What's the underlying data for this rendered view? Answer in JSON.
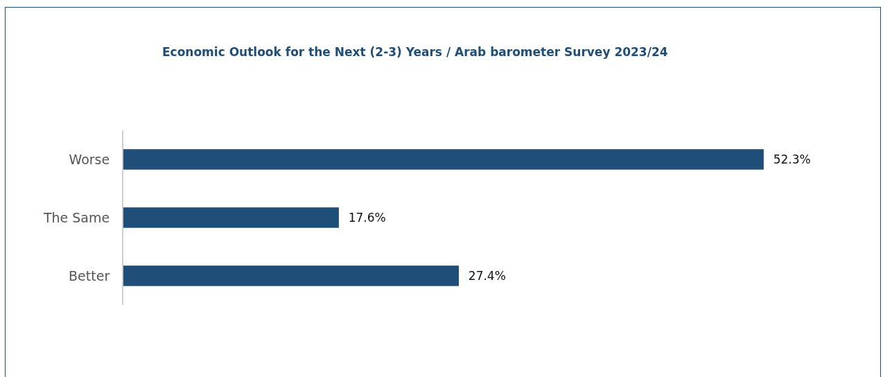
{
  "chart_data": {
    "type": "bar",
    "orientation": "horizontal",
    "title": "Economic Outlook for the Next (2-3) Years / Arab barometer Survey 2023/24",
    "categories": [
      "Worse",
      "The Same",
      "Better"
    ],
    "values": [
      52.3,
      17.6,
      27.4
    ],
    "value_labels": [
      "52.3%",
      "17.6%",
      "27.4%"
    ],
    "color": "#1f4e79"
  }
}
